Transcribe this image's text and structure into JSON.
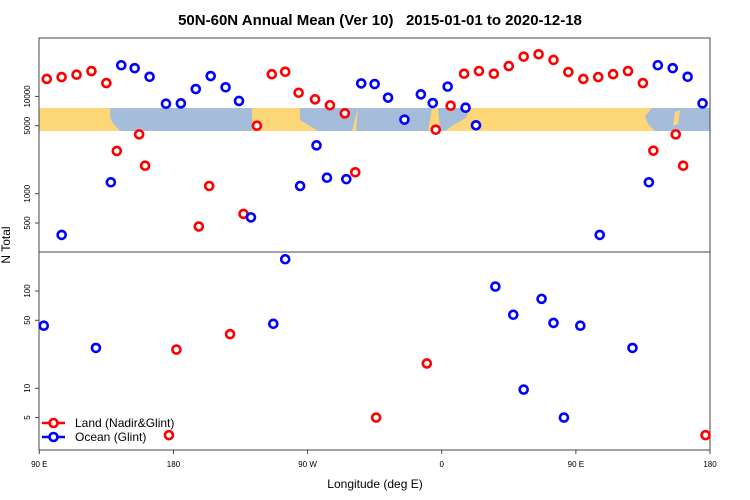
{
  "chart_data": {
    "type": "scatter",
    "title": "50N-60N Annual Mean (Ver 10)   2015-01-01 to 2020-12-18",
    "xlabel": "Longitude (deg E)",
    "ylabel": "N Total",
    "xlim": [
      90,
      540
    ],
    "x_units_note": "unwrapped longitude, degrees east",
    "ylim": [
      2.3,
      40000
    ],
    "yscale": "log",
    "grid": false,
    "legend_position": "bottom-left",
    "xticks": [
      {
        "value": 90,
        "label": "90 E"
      },
      {
        "value": 180,
        "label": "180"
      },
      {
        "value": 270,
        "label": "90 W"
      },
      {
        "value": 360,
        "label": "0"
      },
      {
        "value": 450,
        "label": "90 E"
      },
      {
        "value": 540,
        "label": "180"
      }
    ],
    "yticks": [
      {
        "value": 5,
        "label": "5"
      },
      {
        "value": 10,
        "label": "10"
      },
      {
        "value": 50,
        "label": "50"
      },
      {
        "value": 100,
        "label": "100"
      },
      {
        "value": 500,
        "label": "500"
      },
      {
        "value": 1000,
        "label": "1000"
      },
      {
        "value": 5000,
        "label": "5000"
      },
      {
        "value": 10000,
        "label": "10000"
      }
    ],
    "series": [
      {
        "name": "Land (Nadir&Glint)",
        "color": "#ff0000",
        "points": [
          [
            95,
            15100
          ],
          [
            105,
            15800
          ],
          [
            115,
            16700
          ],
          [
            125,
            18200
          ],
          [
            135,
            13700
          ],
          [
            142,
            2750
          ],
          [
            157,
            4070
          ],
          [
            161,
            1940
          ],
          [
            177,
            3.3
          ],
          [
            182,
            25
          ],
          [
            197,
            460
          ],
          [
            204,
            1200
          ],
          [
            218,
            36
          ],
          [
            227,
            620
          ],
          [
            236,
            5000
          ],
          [
            246,
            16900
          ],
          [
            255,
            17900
          ],
          [
            264,
            10900
          ],
          [
            275,
            9330
          ],
          [
            285,
            8110
          ],
          [
            295,
            6700
          ],
          [
            302,
            1660
          ],
          [
            316,
            5
          ],
          [
            350,
            18
          ],
          [
            356,
            4550
          ],
          [
            366,
            8020
          ],
          [
            375,
            17100
          ],
          [
            385,
            18200
          ],
          [
            395,
            17100
          ],
          [
            405,
            20500
          ],
          [
            415,
            25600
          ],
          [
            425,
            27100
          ],
          [
            435,
            23700
          ],
          [
            445,
            17800
          ],
          [
            455,
            15100
          ],
          [
            465,
            15800
          ],
          [
            475,
            16900
          ],
          [
            485,
            18200
          ],
          [
            495,
            13700
          ],
          [
            502,
            2770
          ],
          [
            517,
            4070
          ],
          [
            522,
            1940
          ],
          [
            537,
            3.3
          ]
        ]
      },
      {
        "name": "Ocean (Glint)",
        "color": "#0000ff",
        "points": [
          [
            93,
            44
          ],
          [
            105,
            377
          ],
          [
            128,
            26
          ],
          [
            138,
            1310
          ],
          [
            145,
            20900
          ],
          [
            154,
            19500
          ],
          [
            164,
            15900
          ],
          [
            175,
            8410
          ],
          [
            185,
            8490
          ],
          [
            195,
            11900
          ],
          [
            205,
            16200
          ],
          [
            215,
            12400
          ],
          [
            224,
            8980
          ],
          [
            232,
            571
          ],
          [
            247,
            46
          ],
          [
            255,
            212
          ],
          [
            265,
            1200
          ],
          [
            276,
            3140
          ],
          [
            283,
            1460
          ],
          [
            296,
            1410
          ],
          [
            306,
            13600
          ],
          [
            315,
            13400
          ],
          [
            324,
            9710
          ],
          [
            335,
            5770
          ],
          [
            346,
            10500
          ],
          [
            354,
            8550
          ],
          [
            364,
            12600
          ],
          [
            376,
            7650
          ],
          [
            383,
            5050
          ],
          [
            396,
            111
          ],
          [
            408,
            57
          ],
          [
            415,
            9.7
          ],
          [
            427,
            83
          ],
          [
            435,
            47
          ],
          [
            442,
            5
          ],
          [
            453,
            44
          ],
          [
            466,
            377
          ],
          [
            488,
            26
          ],
          [
            499,
            1310
          ],
          [
            505,
            20900
          ],
          [
            515,
            19500
          ],
          [
            525,
            15900
          ],
          [
            535,
            8490
          ]
        ]
      }
    ]
  }
}
